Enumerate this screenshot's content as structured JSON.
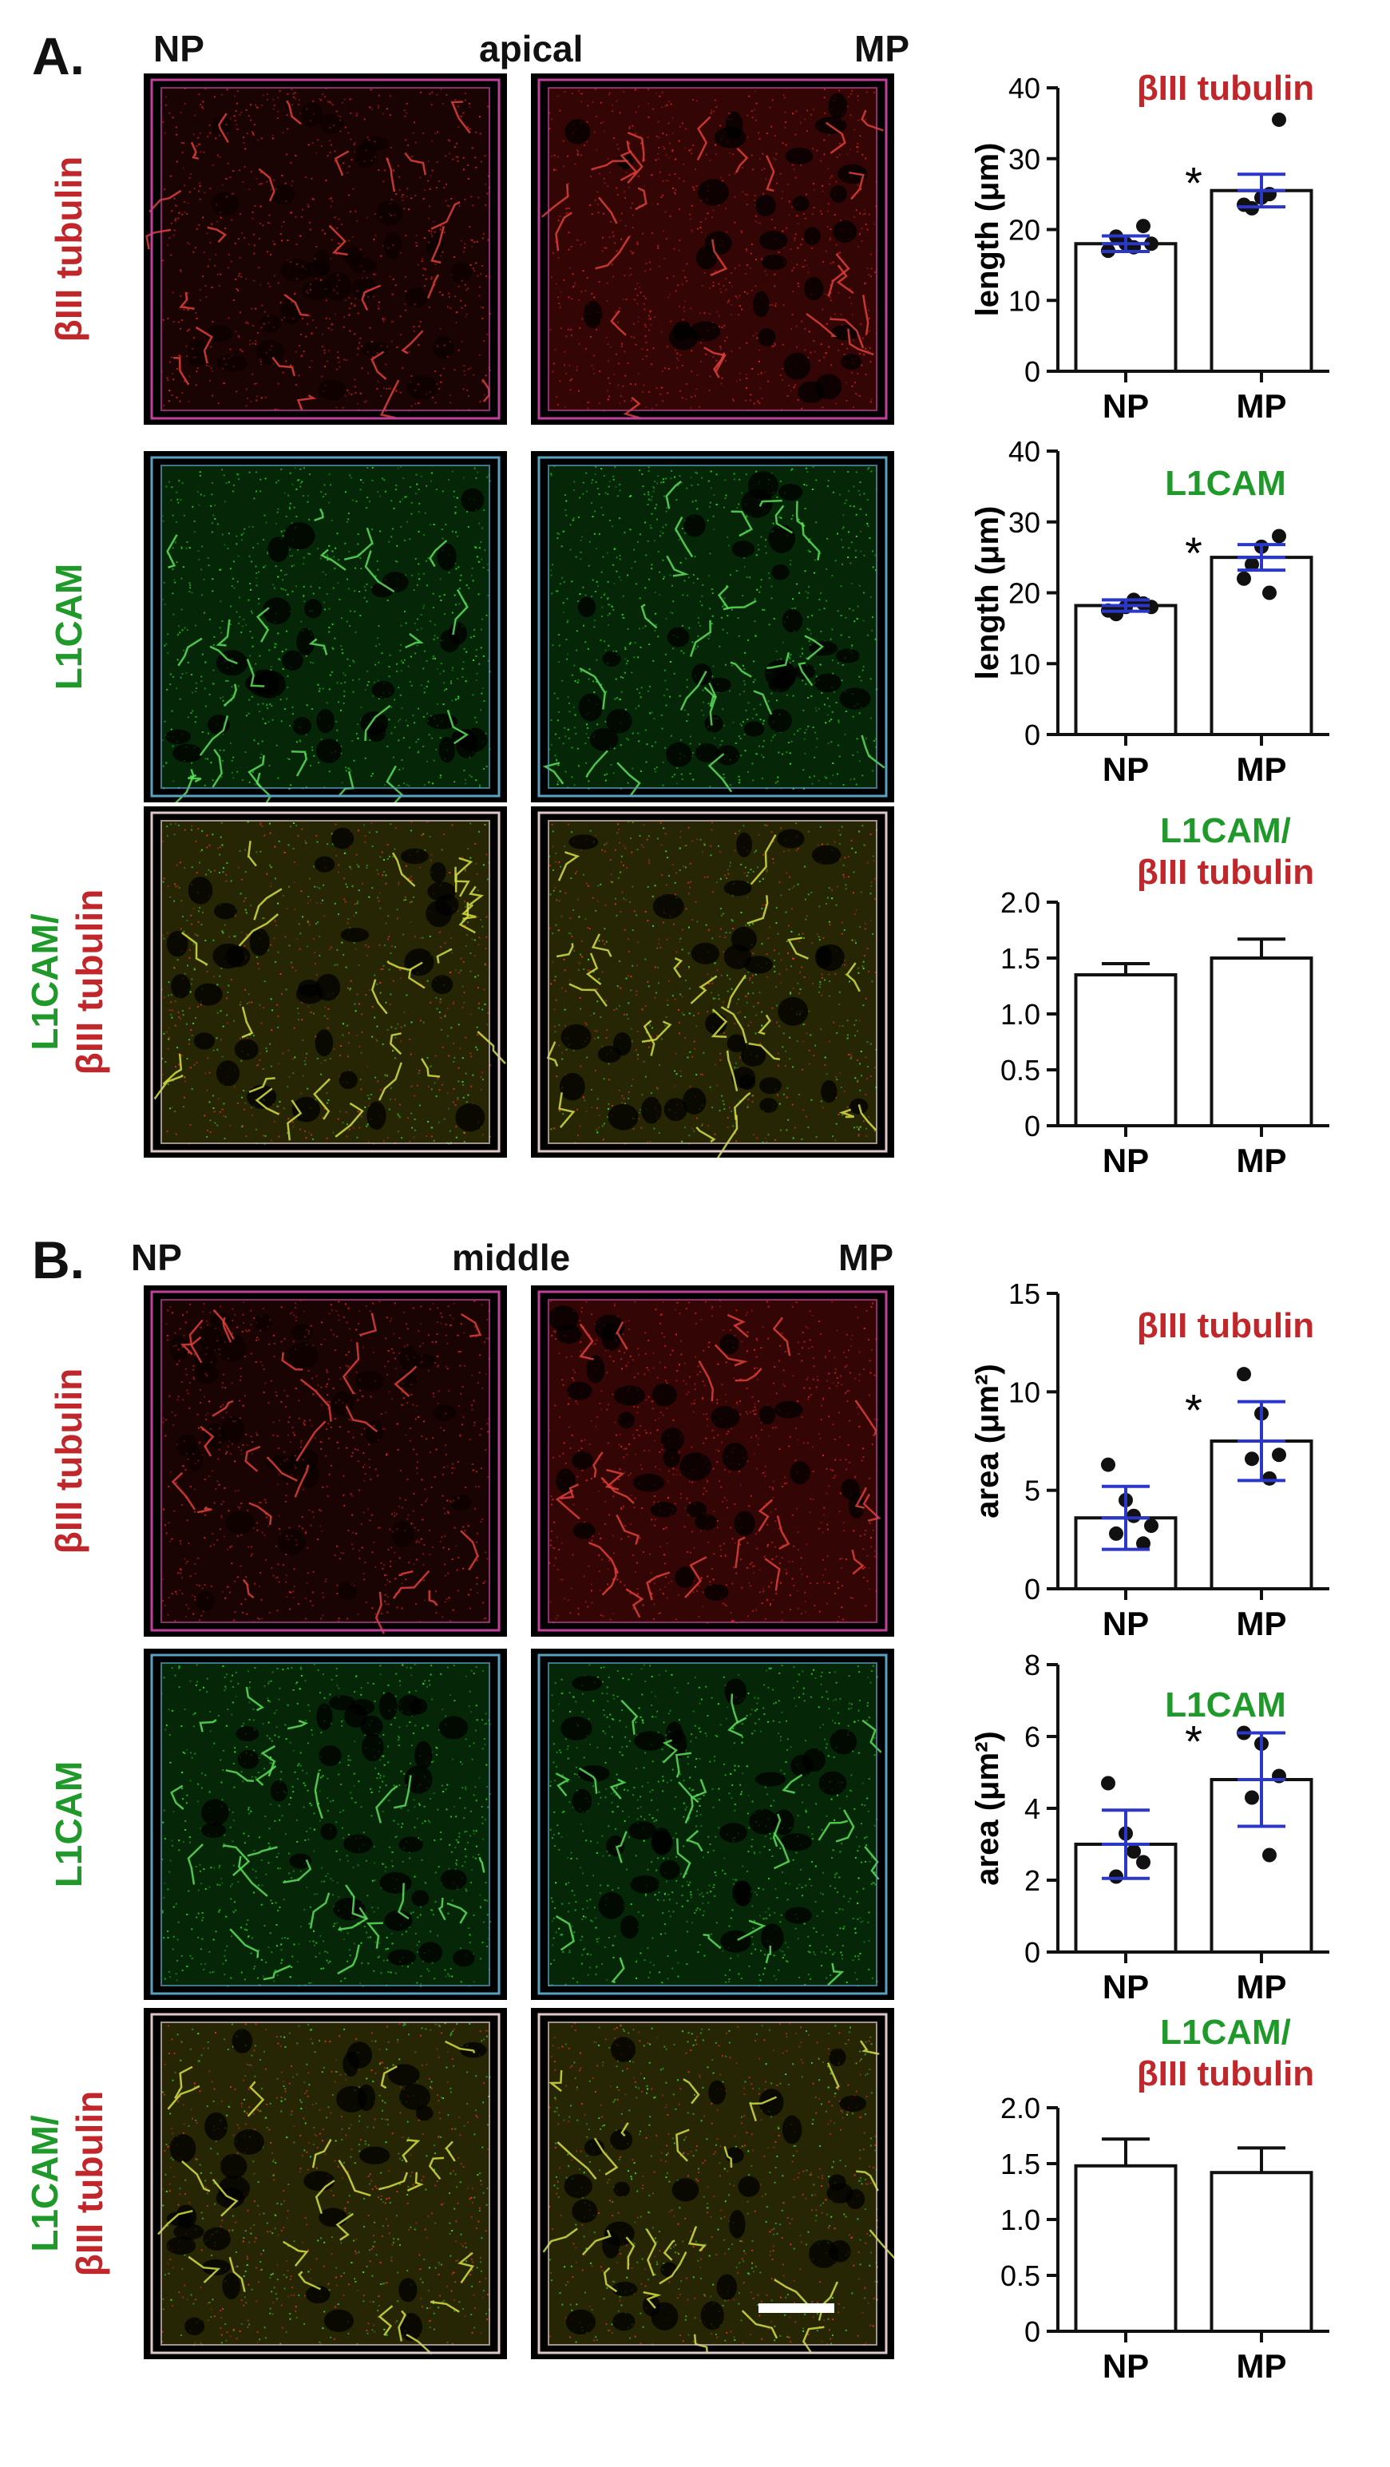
{
  "figure": {
    "panels": [
      {
        "letter": "A.",
        "headers": {
          "left": "NP",
          "center": "apical",
          "right": "MP"
        },
        "rows": [
          {
            "label_lines": [
              {
                "text": "βIII tubulin",
                "color": "#c0262a"
              }
            ],
            "stain": "red"
          },
          {
            "label_lines": [
              {
                "text": "L1CAM",
                "color": "#1f9a2a"
              }
            ],
            "stain": "green"
          },
          {
            "label_lines": [
              {
                "text": "L1CAM/",
                "color": "#1f9a2a"
              },
              {
                "text": "βIII tubulin",
                "color": "#c0262a"
              }
            ],
            "stain": "merge"
          }
        ],
        "has_scale_bar": false
      },
      {
        "letter": "B.",
        "headers": {
          "left": "NP",
          "center": "middle",
          "right": "MP"
        },
        "rows": [
          {
            "label_lines": [
              {
                "text": "βIII tubulin",
                "color": "#c0262a"
              }
            ],
            "stain": "red"
          },
          {
            "label_lines": [
              {
                "text": "L1CAM",
                "color": "#1f9a2a"
              }
            ],
            "stain": "green"
          },
          {
            "label_lines": [
              {
                "text": "L1CAM/",
                "color": "#1f9a2a"
              },
              {
                "text": "βIII tubulin",
                "color": "#c0262a"
              }
            ],
            "stain": "merge"
          }
        ],
        "has_scale_bar": true
      }
    ]
  },
  "chart_data": [
    {
      "type": "bar",
      "panel": "A",
      "row": 1,
      "title_lines": [
        {
          "text": "βIII tubulin",
          "color": "#c0262a"
        }
      ],
      "categories": [
        "NP",
        "MP"
      ],
      "values": [
        18,
        25.5
      ],
      "errors": [
        1.1,
        2.3
      ],
      "points": [
        [
          17,
          18,
          20.5,
          19,
          17.5,
          18
        ],
        [
          23.5,
          24.5,
          35.5,
          23,
          25
        ]
      ],
      "ylabel": "length (μm)",
      "ylim": [
        0,
        40
      ],
      "yticks": [
        0,
        10,
        20,
        30,
        40
      ],
      "significance": "*",
      "error_color": "#2a37c8"
    },
    {
      "type": "bar",
      "panel": "A",
      "row": 2,
      "title_lines": [
        {
          "text": "L1CAM",
          "color": "#1f9a2a"
        }
      ],
      "categories": [
        "NP",
        "MP"
      ],
      "values": [
        18.2,
        25
      ],
      "errors": [
        0.8,
        1.8
      ],
      "points": [
        [
          17.5,
          18,
          18.5,
          17,
          19,
          18
        ],
        [
          22,
          26.5,
          28,
          24,
          20
        ]
      ],
      "ylabel": "length (μm)",
      "ylim": [
        0,
        40
      ],
      "yticks": [
        0,
        10,
        20,
        30,
        40
      ],
      "significance": "*",
      "error_color": "#2a37c8"
    },
    {
      "type": "bar",
      "panel": "A",
      "row": 3,
      "title_lines": [
        {
          "text": "L1CAM/",
          "color": "#1f9a2a"
        },
        {
          "text": "βIII tubulin",
          "color": "#c0262a"
        }
      ],
      "categories": [
        "NP",
        "MP"
      ],
      "values": [
        1.35,
        1.5
      ],
      "errors": [
        0.1,
        0.17
      ],
      "points": [
        [],
        []
      ],
      "ylabel": "",
      "ylim": [
        0,
        2.0
      ],
      "yticks": [
        "0",
        "0.5",
        "1.0",
        "1.5",
        "2.0"
      ],
      "significance": "",
      "error_color": "#2a37c8"
    },
    {
      "type": "bar",
      "panel": "B",
      "row": 1,
      "title_lines": [
        {
          "text": "βIII tubulin",
          "color": "#c0262a"
        }
      ],
      "categories": [
        "NP",
        "MP"
      ],
      "values": [
        3.6,
        7.5
      ],
      "errors": [
        1.6,
        2.0
      ],
      "points": [
        [
          6.3,
          4.5,
          2.3,
          2.8,
          3.7,
          3.2
        ],
        [
          10.9,
          8.9,
          6.8,
          6.6,
          5.6
        ]
      ],
      "ylabel": "area (μm²)",
      "ylim": [
        0,
        15
      ],
      "yticks": [
        0,
        5,
        10,
        15
      ],
      "significance": "*",
      "error_color": "#2a37c8"
    },
    {
      "type": "bar",
      "panel": "B",
      "row": 2,
      "title_lines": [
        {
          "text": "L1CAM",
          "color": "#1f9a2a"
        }
      ],
      "categories": [
        "NP",
        "MP"
      ],
      "values": [
        3.0,
        4.8
      ],
      "errors": [
        0.95,
        1.3
      ],
      "points": [
        [
          4.7,
          3.3,
          2.5,
          2.1,
          2.8
        ],
        [
          6.1,
          5.8,
          4.9,
          4.3,
          2.7
        ]
      ],
      "ylabel": "area (μm²)",
      "ylim": [
        0,
        8
      ],
      "yticks": [
        0,
        2,
        4,
        6,
        8
      ],
      "significance": "*",
      "error_color": "#2a37c8"
    },
    {
      "type": "bar",
      "panel": "B",
      "row": 3,
      "title_lines": [
        {
          "text": "L1CAM/",
          "color": "#1f9a2a"
        },
        {
          "text": "βIII tubulin",
          "color": "#c0262a"
        }
      ],
      "categories": [
        "NP",
        "MP"
      ],
      "values": [
        1.48,
        1.42
      ],
      "errors": [
        0.24,
        0.22
      ],
      "points": [
        [],
        []
      ],
      "ylabel": "",
      "ylim": [
        0,
        2.0
      ],
      "yticks": [
        "0",
        "0.5",
        "1.0",
        "1.5",
        "2.0"
      ],
      "significance": "",
      "error_color": "#2a37c8"
    }
  ]
}
